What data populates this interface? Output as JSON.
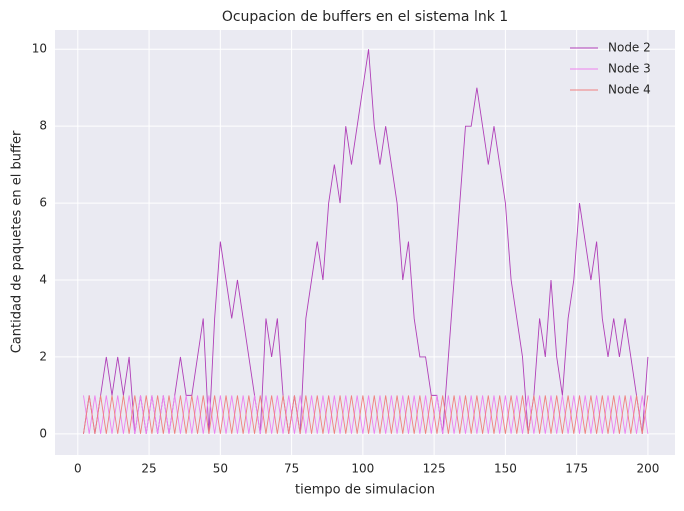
{
  "chart_data": {
    "type": "line",
    "title": "Ocupacion de buffers en el sistema lnk 1",
    "x_label": "tiempo de simulacion",
    "y_label": "Cantidad de paquetes en el buffer",
    "x": [
      2,
      4,
      6,
      8,
      10,
      12,
      14,
      16,
      18,
      20,
      22,
      24,
      26,
      28,
      30,
      32,
      34,
      36,
      38,
      40,
      42,
      44,
      46,
      48,
      50,
      52,
      54,
      56,
      58,
      60,
      62,
      64,
      66,
      68,
      70,
      72,
      74,
      76,
      78,
      80,
      82,
      84,
      86,
      88,
      90,
      92,
      94,
      96,
      98,
      100,
      102,
      104,
      106,
      108,
      110,
      112,
      114,
      116,
      118,
      120,
      122,
      124,
      126,
      128,
      130,
      132,
      134,
      136,
      138,
      140,
      142,
      144,
      146,
      148,
      150,
      152,
      154,
      156,
      158,
      160,
      162,
      164,
      166,
      168,
      170,
      172,
      174,
      176,
      178,
      180,
      182,
      184,
      186,
      188,
      190,
      192,
      194,
      196,
      198,
      200
    ],
    "series": [
      {
        "name": "Node 2",
        "color": "#b040b8",
        "values": [
          0,
          1,
          0,
          1,
          2,
          1,
          2,
          1,
          2,
          0,
          1,
          0,
          1,
          0,
          1,
          0,
          1,
          2,
          1,
          1,
          2,
          3,
          0,
          3,
          5,
          4,
          3,
          4,
          3,
          2,
          1,
          0,
          3,
          2,
          3,
          1,
          0,
          1,
          0,
          3,
          4,
          5,
          4,
          6,
          7,
          6,
          8,
          7,
          8,
          9,
          10,
          8,
          7,
          8,
          7,
          6,
          4,
          5,
          3,
          2,
          2,
          1,
          1,
          0,
          2,
          4,
          6,
          8,
          8,
          9,
          8,
          7,
          8,
          7,
          6,
          4,
          3,
          2,
          0,
          1,
          3,
          2,
          4,
          2,
          1,
          3,
          4,
          6,
          5,
          4,
          5,
          3,
          2,
          3,
          2,
          3,
          2,
          1,
          0,
          2
        ]
      },
      {
        "name": "Node 3",
        "color": "#ee82ee",
        "values": [
          1,
          0,
          1,
          0,
          1,
          0,
          1,
          0,
          1,
          0,
          1,
          0,
          1,
          0,
          1,
          0,
          1,
          0,
          1,
          0,
          1,
          0,
          1,
          0,
          1,
          0,
          1,
          0,
          1,
          0,
          1,
          0,
          1,
          0,
          1,
          0,
          1,
          0,
          1,
          0,
          1,
          0,
          1,
          0,
          1,
          0,
          1,
          0,
          1,
          0,
          1,
          0,
          1,
          0,
          1,
          0,
          1,
          0,
          1,
          0,
          1,
          0,
          1,
          0,
          1,
          0,
          1,
          0,
          1,
          0,
          1,
          0,
          1,
          0,
          1,
          0,
          1,
          0,
          1,
          0,
          1,
          0,
          1,
          0,
          1,
          0,
          1,
          0,
          1,
          0,
          1,
          0,
          1,
          0,
          1,
          0,
          1,
          0,
          1,
          0
        ]
      },
      {
        "name": "Node 4",
        "color": "#f08080",
        "values": [
          0,
          1,
          0,
          1,
          0,
          1,
          0,
          1,
          0,
          1,
          0,
          1,
          0,
          1,
          0,
          1,
          0,
          1,
          0,
          1,
          0,
          1,
          0,
          1,
          0,
          1,
          0,
          1,
          0,
          1,
          0,
          1,
          0,
          1,
          0,
          1,
          0,
          1,
          0,
          1,
          0,
          1,
          0,
          1,
          0,
          1,
          0,
          1,
          0,
          1,
          0,
          1,
          0,
          1,
          0,
          1,
          0,
          1,
          0,
          1,
          0,
          1,
          0,
          1,
          0,
          1,
          0,
          1,
          0,
          1,
          0,
          1,
          0,
          1,
          0,
          1,
          0,
          1,
          0,
          1,
          0,
          1,
          0,
          1,
          0,
          1,
          0,
          1,
          0,
          1,
          0,
          1,
          0,
          1,
          0,
          1,
          0,
          1,
          0,
          1
        ]
      }
    ],
    "xlim": [
      -8,
      209.5
    ],
    "ylim": [
      -0.55,
      10.5
    ],
    "xticks": [
      0,
      25,
      50,
      75,
      100,
      125,
      150,
      175,
      200
    ],
    "yticks": [
      0,
      2,
      4,
      6,
      8,
      10
    ],
    "grid": true,
    "legend": "upper right"
  }
}
